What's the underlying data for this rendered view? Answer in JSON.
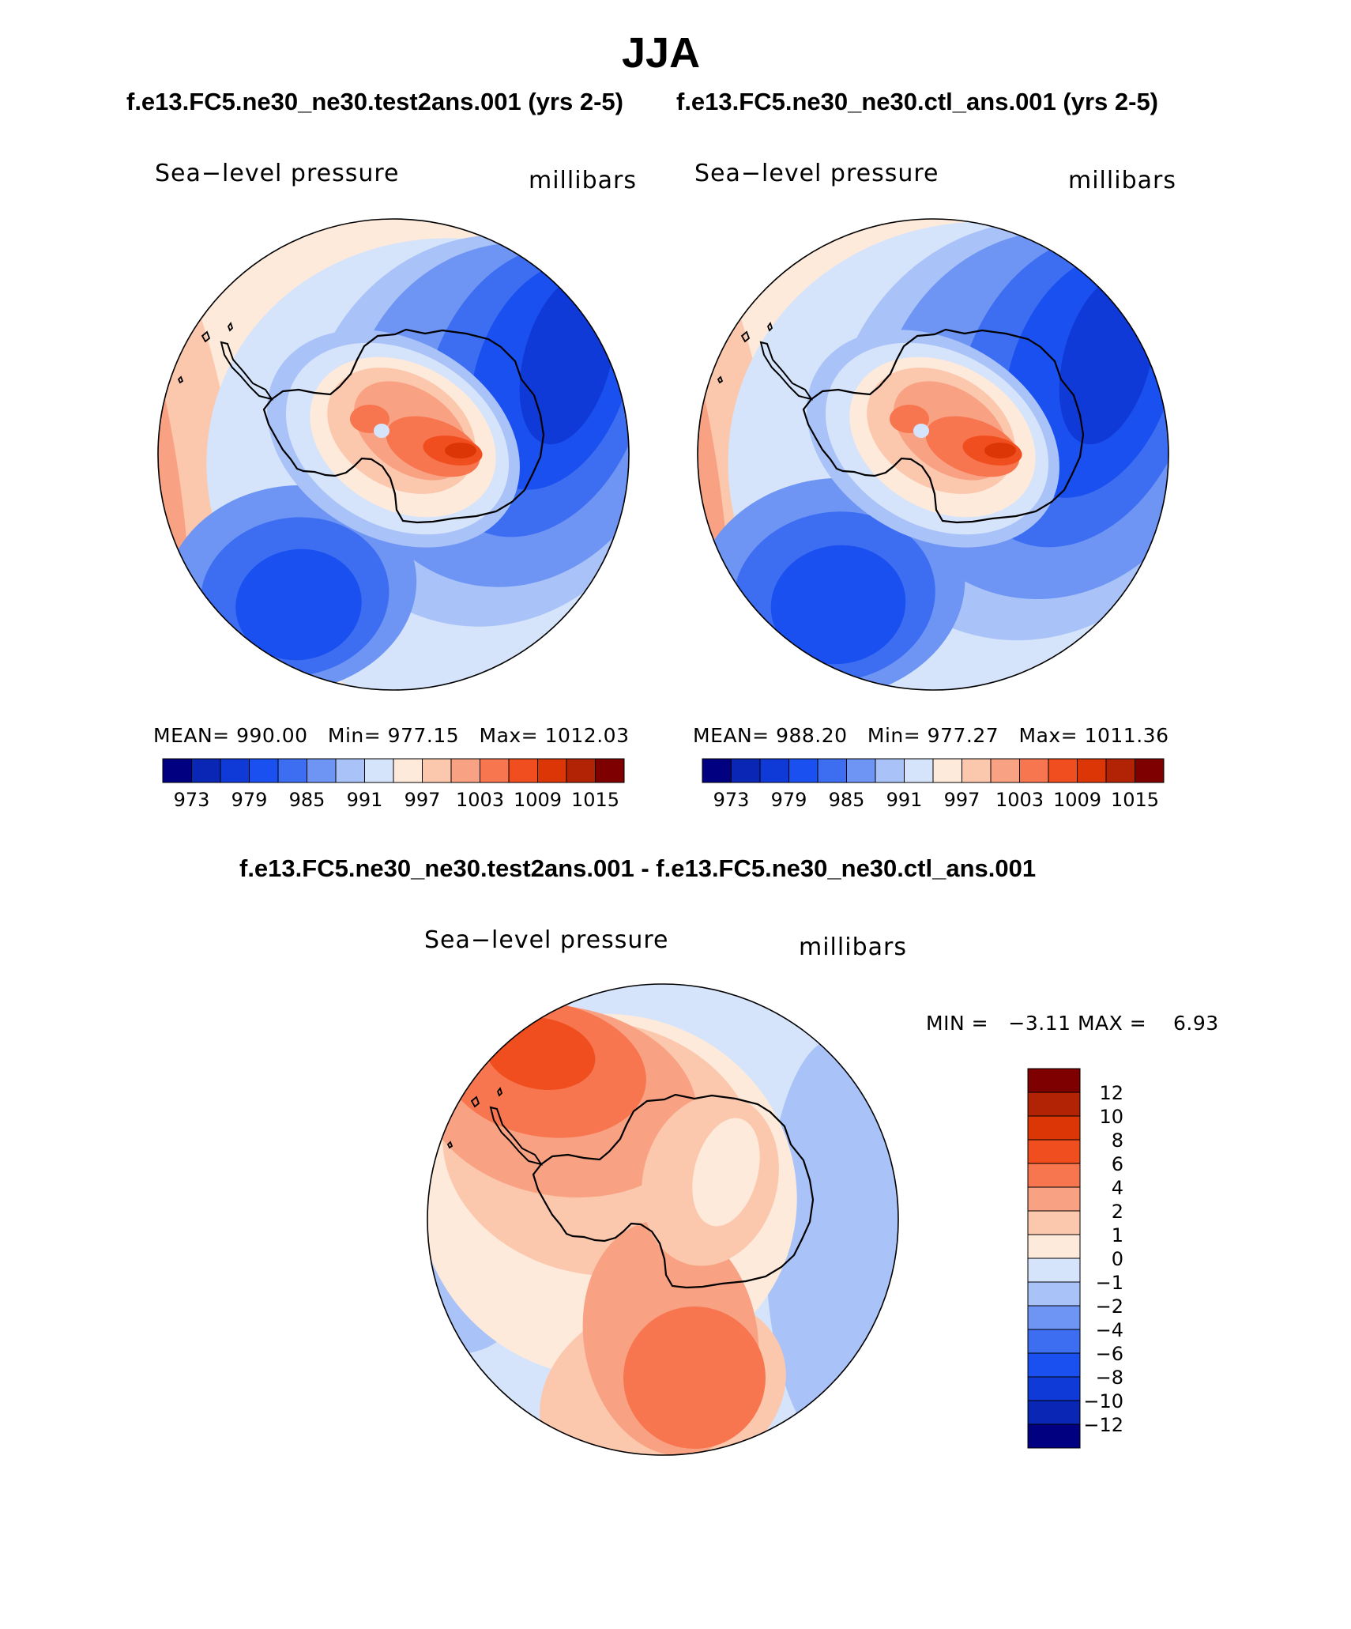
{
  "season_title": "JJA",
  "panels": [
    {
      "case_title": "f.e13.FC5.ne30_ne30.test2ans.001 (yrs 2-5)",
      "variable": "Sea−level pressure",
      "units": "millibars",
      "stats": {
        "mean_label": "MEAN=",
        "mean": "990.00",
        "min_label": "Min=",
        "min": "977.15",
        "max_label": "Max=",
        "max": "1012.03"
      },
      "field": {
        "pole_high_mbar": 1012,
        "primary_low_mbar": 977,
        "secondary_low_mbar": 980,
        "peninsula_low_mbar": 985
      }
    },
    {
      "case_title": "f.e13.FC5.ne30_ne30.ctl_ans.001 (yrs 2-5)",
      "variable": "Sea−level pressure",
      "units": "millibars",
      "stats": {
        "mean_label": "MEAN=",
        "mean": "988.20",
        "min_label": "Min=",
        "min": "977.27",
        "max_label": "Max=",
        "max": "1011.36"
      },
      "field": {
        "pole_high_mbar": 1011,
        "primary_low_mbar": 977,
        "secondary_low_mbar": 979,
        "peninsula_low_mbar": 983
      }
    }
  ],
  "abs_colorbar": {
    "levels": [
      973,
      976,
      979,
      982,
      985,
      988,
      991,
      994,
      997,
      1000,
      1003,
      1006,
      1009,
      1012,
      1015
    ],
    "tick_labels": [
      "973",
      "979",
      "985",
      "991",
      "997",
      "1003",
      "1009",
      "1015"
    ],
    "colors": [
      "#000080",
      "#0a26b4",
      "#0f3ad7",
      "#1a4ff0",
      "#3d6ef2",
      "#6e95f4",
      "#a9c2f7",
      "#d5e4fb",
      "#feeadb",
      "#fbc8ae",
      "#f9a283",
      "#f7764f",
      "#f04e1e",
      "#dc3606",
      "#b22204",
      "#7f0000"
    ]
  },
  "diff_panel": {
    "title": "f.e13.FC5.ne30_ne30.test2ans.001 - f.e13.FC5.ne30_ne30.ctl_ans.001",
    "variable": "Sea−level pressure",
    "units": "millibars",
    "min_label": "MIN =",
    "min": "−3.11",
    "max_label": "MAX =",
    "max": "6.93"
  },
  "diff_colorbar": {
    "labels": [
      "12",
      "10",
      "8",
      "6",
      "4",
      "2",
      "1",
      "0",
      "−1",
      "−2",
      "−4",
      "−6",
      "−8",
      "−10",
      "−12"
    ],
    "levels": [
      12,
      10,
      8,
      6,
      4,
      2,
      1,
      0,
      -1,
      -2,
      -4,
      -6,
      -8,
      -10,
      -12
    ],
    "colors": [
      "#7f0000",
      "#b22204",
      "#dc3606",
      "#f04e1e",
      "#f7764f",
      "#f9a283",
      "#fbc8ae",
      "#feeadb",
      "#d5e4fb",
      "#a9c2f7",
      "#6e95f4",
      "#3d6ef2",
      "#1a4ff0",
      "#0f3ad7",
      "#0a26b4",
      "#000080"
    ]
  },
  "colors": {
    "land_outline": "#000000",
    "background": "#ffffff"
  }
}
